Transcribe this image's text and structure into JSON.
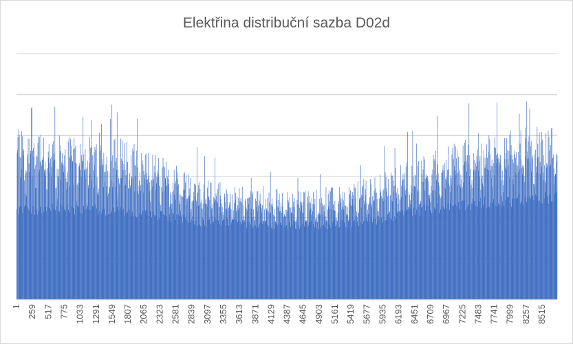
{
  "chart_data": {
    "type": "bar",
    "title": "Elektřina distribuční sazba D02d",
    "xlabel": "",
    "ylabel": "",
    "x_range": [
      1,
      8760
    ],
    "x_tick_labels": [
      "1",
      "259",
      "517",
      "775",
      "1033",
      "1291",
      "1549",
      "1807",
      "2065",
      "2323",
      "2581",
      "2839",
      "3097",
      "3355",
      "3613",
      "3871",
      "4129",
      "4387",
      "4645",
      "4903",
      "5161",
      "5419",
      "5677",
      "5935",
      "6193",
      "6451",
      "6709",
      "6967",
      "7225",
      "7483",
      "7741",
      "7999",
      "8257",
      "8515"
    ],
    "y_axis_labels_shown": false,
    "ylim": [
      0,
      6
    ],
    "grid": true,
    "legend": "none",
    "bar_color": "#4472C4",
    "grid_color": "#d9d9d9",
    "profile_note_hours": [
      1,
      351,
      701,
      1051,
      1401,
      1751,
      2101,
      2451,
      2801,
      3151,
      3501,
      3851,
      4201,
      4551,
      4901,
      5251,
      5601,
      5951,
      6301,
      6651,
      7001,
      7351,
      7701,
      8051,
      8401,
      8760
    ],
    "base_level": [
      2.25,
      2.3,
      2.3,
      2.3,
      2.25,
      2.25,
      2.2,
      2.1,
      2.0,
      1.97,
      1.95,
      1.92,
      1.9,
      1.9,
      1.9,
      1.92,
      1.98,
      2.05,
      2.2,
      2.3,
      2.35,
      2.42,
      2.48,
      2.5,
      2.55,
      2.6
    ],
    "peak_level": [
      4.0,
      3.9,
      3.75,
      3.75,
      3.7,
      3.7,
      3.45,
      3.2,
      2.95,
      2.8,
      2.6,
      2.5,
      2.55,
      2.5,
      2.5,
      2.6,
      2.75,
      2.9,
      3.15,
      3.35,
      3.55,
      3.75,
      3.85,
      3.9,
      3.95,
      3.95
    ],
    "max_value": 5.0
  }
}
